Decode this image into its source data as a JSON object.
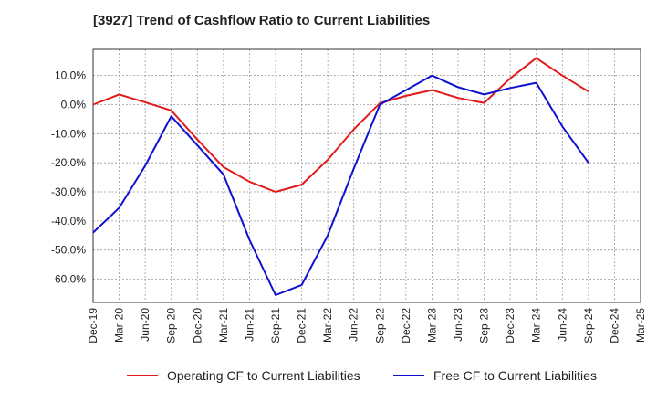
{
  "chart_data": {
    "type": "line",
    "title": "[3927]  Trend of Cashflow Ratio to Current Liabilities",
    "xlabel": "",
    "ylabel": "",
    "x": [
      "Dec-19",
      "Mar-20",
      "Jun-20",
      "Sep-20",
      "Dec-20",
      "Mar-21",
      "Jun-21",
      "Sep-21",
      "Dec-21",
      "Mar-22",
      "Jun-22",
      "Sep-22",
      "Dec-22",
      "Mar-23",
      "Jun-23",
      "Sep-23",
      "Dec-23",
      "Mar-24",
      "Jun-24",
      "Sep-24",
      "Dec-24",
      "Mar-25"
    ],
    "ylim": [
      -68,
      19
    ],
    "yticks": [
      10,
      0,
      -10,
      -20,
      -30,
      -40,
      -50,
      -60
    ],
    "ytick_labels": [
      "10.0%",
      "0.0%",
      "-10.0%",
      "-20.0%",
      "-30.0%",
      "-40.0%",
      "-50.0%",
      "-60.0%"
    ],
    "grid": true,
    "legend_position": "bottom",
    "series": [
      {
        "name": "Operating CF to Current Liabilities",
        "color": "#e31a1c",
        "values": [
          0.0,
          3.5,
          0.8,
          -2.0,
          -12.0,
          -21.5,
          -26.5,
          -30.0,
          -27.5,
          -19.0,
          -8.5,
          0.5,
          3.0,
          5.0,
          2.3,
          0.6,
          9.0,
          16.0,
          10.0,
          4.5,
          null,
          null
        ]
      },
      {
        "name": "Free CF to Current Liabilities",
        "color": "#1010d0",
        "values": [
          -44.0,
          -35.5,
          -21.0,
          -4.0,
          -14.0,
          -24.0,
          -46.5,
          -65.5,
          -62.0,
          -45.0,
          -22.0,
          0.0,
          5.0,
          10.0,
          6.0,
          3.5,
          5.7,
          7.5,
          -7.5,
          -20.0,
          null,
          null
        ]
      }
    ]
  }
}
